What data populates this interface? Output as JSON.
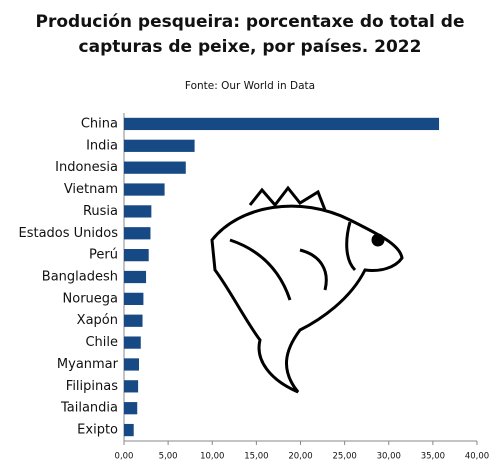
{
  "chart_data": {
    "type": "bar",
    "orientation": "horizontal",
    "title": [
      "Produción pesqueira: porcentaxe do total de",
      "capturas de peixe, por países. 2022"
    ],
    "subtitle": "Fonte: Our World in Data",
    "categories": [
      "China",
      "India",
      "Indonesia",
      "Vietnam",
      "Rusia",
      "Estados Unidos",
      "Perú",
      "Bangladesh",
      "Noruega",
      "Xapón",
      "Chile",
      "Myanmar",
      "Filipinas",
      "Tailandia",
      "Exipto"
    ],
    "values": [
      35.7,
      8.0,
      7.0,
      4.6,
      3.1,
      3.0,
      2.8,
      2.5,
      2.2,
      2.1,
      1.9,
      1.7,
      1.6,
      1.5,
      1.1
    ],
    "color": "#174a85",
    "xlim": [
      0,
      40
    ],
    "xticks": [
      {
        "value": 0,
        "label": "0,00"
      },
      {
        "value": 5,
        "label": "5,00"
      },
      {
        "value": 10,
        "label": "10,00"
      },
      {
        "value": 15,
        "label": "15,00"
      },
      {
        "value": 20,
        "label": "20,00"
      },
      {
        "value": 25,
        "label": "25,00"
      },
      {
        "value": 30,
        "label": "30,00"
      },
      {
        "value": 35,
        "label": "35,00"
      },
      {
        "value": 40,
        "label": "40,00"
      }
    ],
    "grid": false
  }
}
